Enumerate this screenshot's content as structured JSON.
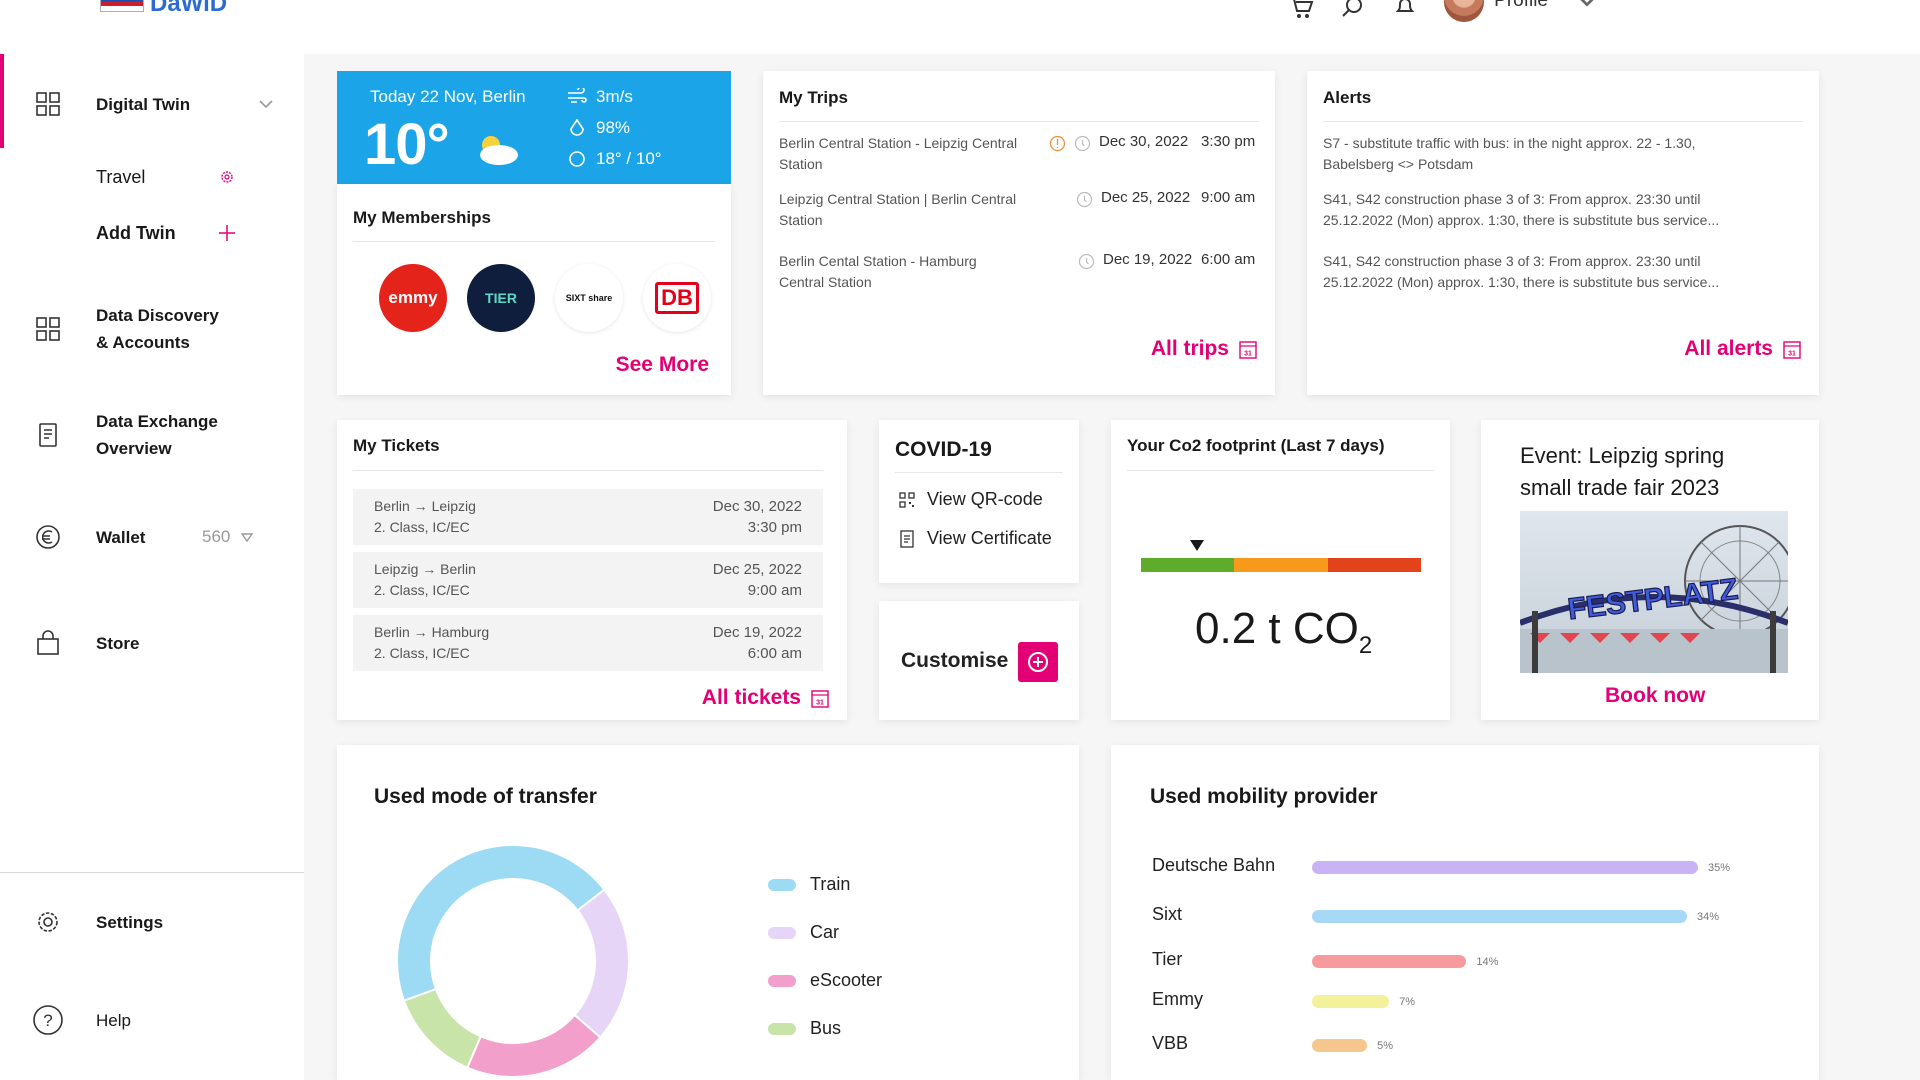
{
  "app": {
    "logo_text": "DaWiD"
  },
  "topbar": {
    "profile_label": "Profile"
  },
  "sidebar": {
    "digital_twin": "Digital Twin",
    "travel": "Travel",
    "add_twin": "Add Twin",
    "data_discovery_line1": "Data Discovery",
    "data_discovery_line2": "& Accounts",
    "data_exchange_line1": "Data Exchange",
    "data_exchange_line2": "Overview",
    "wallet": "Wallet",
    "wallet_balance": "560",
    "store": "Store",
    "settings": "Settings",
    "help": "Help"
  },
  "weather": {
    "date_location": "Today 22 Nov, Berlin",
    "temperature": "10°",
    "wind": "3m/s",
    "humidity": "98%",
    "range": "18° / 10°"
  },
  "memberships": {
    "title": "My Memberships",
    "logos": [
      "emmy",
      "TIER",
      "SIXT share",
      "DB"
    ],
    "see_more": "See More"
  },
  "trips": {
    "title": "My Trips",
    "items": [
      {
        "route_line1": "Berlin Central Station - Leipzig Central",
        "route_line2": "Station",
        "date": "Dec 30, 2022",
        "time": "3:30 pm"
      },
      {
        "route_line1": "Leipzig Central Station | Berlin Central",
        "route_line2": "Station",
        "date": "Dec 25, 2022",
        "time": "9:00 am"
      },
      {
        "route_line1": "Berlin Cental Station - Hamburg",
        "route_line2": "Central Station",
        "date": "Dec 19, 2022",
        "time": "6:00 am"
      }
    ],
    "all_link": "All trips",
    "calendar_day": "31"
  },
  "alerts": {
    "title": "Alerts",
    "items": [
      {
        "line1": "S7 - substitute traffic with bus: in the night approx. 22 - 1.30,",
        "line2": "Babelsberg <> Potsdam"
      },
      {
        "line1": "S41, S42 construction phase 3 of 3: From approx. 23:30 until",
        "line2": "25.12.2022 (Mon) approx. 1:30, there is substitute bus service..."
      },
      {
        "line1": "S41, S42 construction phase 3 of 3: From approx. 23:30 until",
        "line2": "25.12.2022 (Mon) approx. 1:30, there is substitute bus service..."
      }
    ],
    "all_link": "All alerts"
  },
  "tickets": {
    "title": "My Tickets",
    "items": [
      {
        "route": "Berlin → Leipzig",
        "class": "2. Class, IC/EC",
        "date": "Dec 30, 2022",
        "time": "3:30 pm"
      },
      {
        "route": "Leipzig → Berlin",
        "class": "2. Class, IC/EC",
        "date": "Dec 25, 2022",
        "time": "9:00 am"
      },
      {
        "route": "Berlin → Hamburg",
        "class": "2. Class, IC/EC",
        "date": "Dec 19, 2022",
        "time": "6:00 am"
      }
    ],
    "all_link": "All tickets"
  },
  "covid": {
    "title": "COVID-19",
    "qr_label": "View QR-code",
    "certificate_label": "View Certificate"
  },
  "customise": {
    "label": "Customise"
  },
  "co2": {
    "title": "Your Co2 footprint (Last 7 days)",
    "value": "0.2 t CO",
    "subscript": "2",
    "level_fraction": 0.2,
    "scale_colors": [
      "#5fac2c",
      "#f79a1b",
      "#e2431b"
    ]
  },
  "event": {
    "title_line1": "Event: Leipzig spring",
    "title_line2": "small trade fair 2023",
    "sign_text": "FESTPLATZ",
    "book_now": "Book now"
  },
  "transfer_chart": {
    "title": "Used mode of transfer",
    "legend": [
      {
        "label": "Train",
        "color": "#9ddbf5"
      },
      {
        "label": "Car",
        "color": "#e6d5f7"
      },
      {
        "label": "eScooter",
        "color": "#f2a0cb"
      },
      {
        "label": "Bus",
        "color": "#c8e4a8"
      }
    ]
  },
  "provider_chart": {
    "title": "Used mobility provider"
  },
  "chart_data": [
    {
      "type": "pie",
      "title": "Used mode of transfer",
      "categories": [
        "Train",
        "Car",
        "eScooter",
        "Bus"
      ],
      "values": [
        45,
        22,
        20,
        13
      ],
      "colors": [
        "#9ddbf5",
        "#e6d5f7",
        "#f2a0cb",
        "#c8e4a8"
      ]
    },
    {
      "type": "bar",
      "title": "Used mobility provider",
      "categories": [
        "Deutsche Bahn",
        "Sixt",
        "Tier",
        "Emmy",
        "VBB"
      ],
      "values": [
        35,
        34,
        14,
        7,
        5
      ],
      "value_labels": [
        "35%",
        "34%",
        "14%",
        "7%",
        "5%"
      ],
      "colors": [
        "#c9b3f4",
        "#a7d8f5",
        "#f79a9d",
        "#f3f29b",
        "#f5c78f"
      ]
    }
  ]
}
